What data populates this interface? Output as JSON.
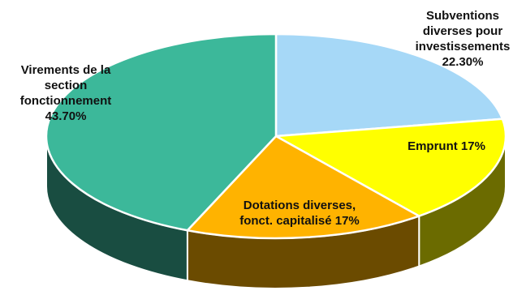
{
  "chart_data": {
    "type": "pie",
    "style": "3d",
    "title": "",
    "slices": [
      {
        "label_lines": [
          "Subventions",
          "diverses pour",
          "investissements"
        ],
        "value_label": "22.30%",
        "value": 22.3,
        "color": "#a6d8f7"
      },
      {
        "label_lines": [
          "Emprunt 17%"
        ],
        "value_label": "",
        "value": 17,
        "color": "#ffff00"
      },
      {
        "label_lines": [
          "Dotations diverses,",
          "fonct. capitalisé 17%"
        ],
        "value_label": "",
        "value": 17,
        "color": "#ffb300"
      },
      {
        "label_lines": [
          "Virements de la",
          "section",
          "fonctionnement"
        ],
        "value_label": "43.70%",
        "value": 43.7,
        "color": "#3cb89a"
      }
    ]
  }
}
